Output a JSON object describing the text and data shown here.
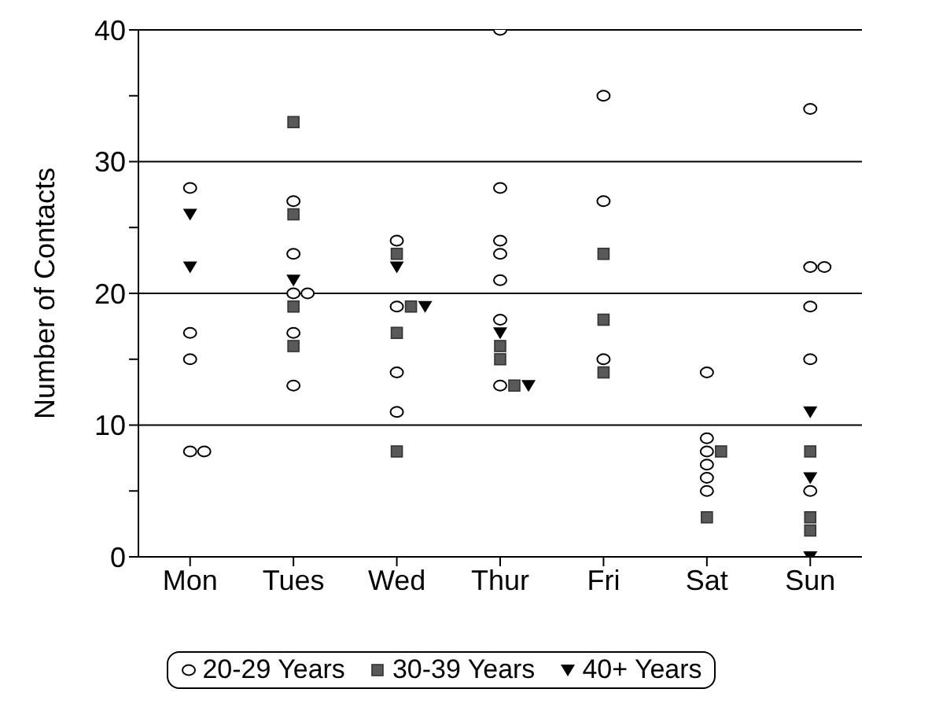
{
  "chart_data": {
    "type": "scatter",
    "ylabel": "Number of Contacts",
    "categories": [
      "Mon",
      "Tues",
      "Wed",
      "Thur",
      "Fri",
      "Sat",
      "Sun"
    ],
    "ylim": [
      0,
      40
    ],
    "yticks": [
      0,
      {
        "value": 5,
        "label": null
      },
      10,
      {
        "value": 15,
        "label": null
      },
      20,
      {
        "value": 25,
        "label": null
      },
      30,
      {
        "value": 35,
        "label": null
      },
      40
    ],
    "grid": "y",
    "legend": "bottom",
    "series": [
      {
        "name": "20-29 Years",
        "color": "#ffffff",
        "marker": "circle",
        "x": [
          "Mon",
          "Mon",
          "Mon",
          "Mon",
          "Mon",
          "Tues",
          "Tues",
          "Tues",
          "Tues",
          "Tues",
          "Tues",
          "Wed",
          "Wed",
          "Wed",
          "Wed",
          "Thur",
          "Thur",
          "Thur",
          "Thur",
          "Thur",
          "Thur",
          "Thur",
          "Fri",
          "Fri",
          "Fri",
          "Sat",
          "Sat",
          "Sat",
          "Sat",
          "Sat",
          "Sat",
          "Sun",
          "Sun",
          "Sun",
          "Sun",
          "Sun",
          "Sun"
        ],
        "values": [
          28,
          17,
          15,
          8,
          8,
          27,
          23,
          20,
          20,
          17,
          13,
          24,
          19,
          14,
          11,
          40,
          28,
          24,
          23,
          21,
          18,
          13,
          35,
          27,
          15,
          14,
          9,
          8,
          7,
          6,
          5,
          34,
          22,
          22,
          19,
          15,
          5
        ]
      },
      {
        "name": "30-39 Years",
        "color": "#595959",
        "marker": "square",
        "x": [
          "Tues",
          "Tues",
          "Tues",
          "Tues",
          "Wed",
          "Wed",
          "Wed",
          "Wed",
          "Thur",
          "Thur",
          "Thur",
          "Fri",
          "Fri",
          "Fri",
          "Sat",
          "Sat",
          "Sun",
          "Sun",
          "Sun"
        ],
        "values": [
          33,
          26,
          19,
          16,
          23,
          19,
          17,
          8,
          16,
          15,
          13,
          23,
          18,
          14,
          8,
          3,
          8,
          3,
          2
        ]
      },
      {
        "name": "40+ Years",
        "color": "#000000",
        "marker": "triangle",
        "x": [
          "Mon",
          "Mon",
          "Tues",
          "Wed",
          "Wed",
          "Thur",
          "Thur",
          "Sun",
          "Sun",
          "Sun"
        ],
        "values": [
          26,
          22,
          21,
          22,
          19,
          17,
          13,
          11,
          6,
          0
        ]
      }
    ]
  }
}
